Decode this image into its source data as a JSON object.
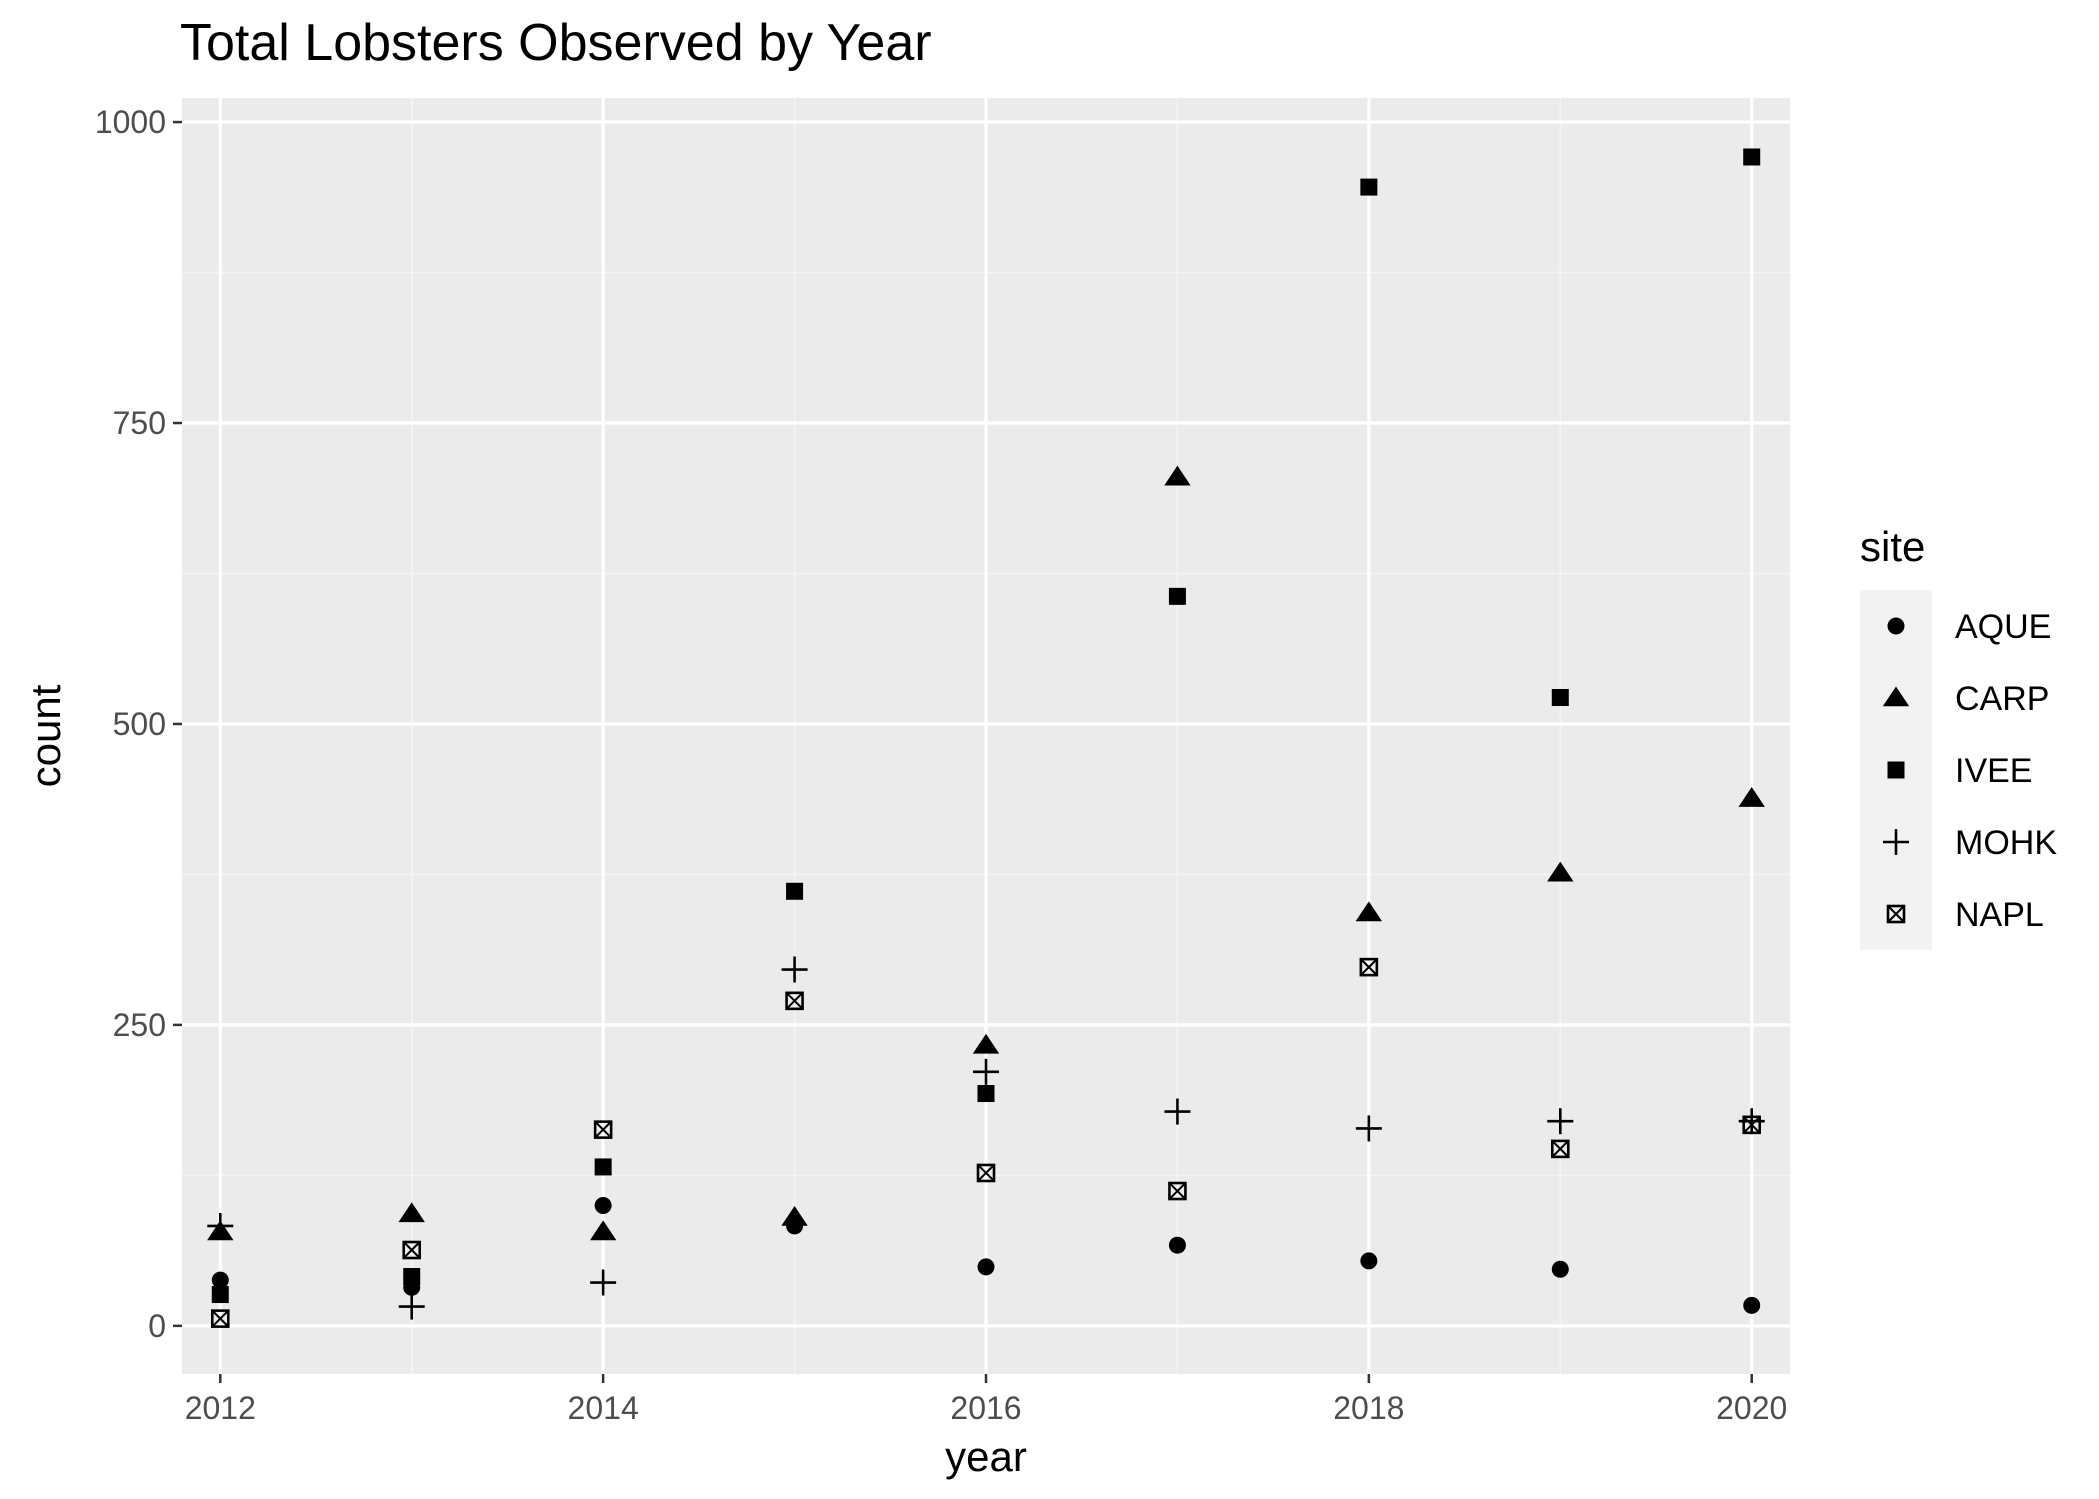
{
  "chart_data": {
    "type": "scatter",
    "title": "Total Lobsters Observed by Year",
    "xlabel": "year",
    "ylabel": "count",
    "xlim": [
      2011.8,
      2020.2
    ],
    "ylim": [
      -40,
      1020
    ],
    "x_ticks": [
      2012,
      2014,
      2016,
      2018,
      2020
    ],
    "x_tick_labels": [
      "2012",
      "2014",
      "2016",
      "2018",
      "2020"
    ],
    "y_ticks": [
      0,
      250,
      500,
      750,
      1000
    ],
    "y_tick_labels": [
      "0",
      "250",
      "500",
      "750",
      "1000"
    ],
    "grid": true,
    "legend_position": "right",
    "legend_title": "site",
    "x": [
      2012,
      2013,
      2014,
      2015,
      2016,
      2017,
      2018,
      2019,
      2020
    ],
    "series": [
      {
        "name": "AQUE",
        "shape": "circle",
        "values": [
          38,
          32,
          100,
          83,
          49,
          67,
          54,
          47,
          17
        ]
      },
      {
        "name": "CARP",
        "shape": "triangle",
        "values": [
          78,
          93,
          78,
          90,
          233,
          705,
          343,
          376,
          438
        ]
      },
      {
        "name": "IVEE",
        "shape": "square",
        "values": [
          26,
          41,
          132,
          361,
          193,
          606,
          946,
          522,
          971
        ]
      },
      {
        "name": "MOHK",
        "shape": "plus",
        "values": [
          83,
          16,
          36,
          296,
          211,
          178,
          164,
          170,
          170
        ]
      },
      {
        "name": "NAPL",
        "shape": "square-cross",
        "values": [
          6,
          63,
          163,
          270,
          127,
          112,
          298,
          147,
          167
        ]
      }
    ],
    "colors": {
      "panel_background": "#ebebeb",
      "grid_major": "#ffffff",
      "grid_minor": "#f5f5f5",
      "point": "#000000"
    }
  }
}
